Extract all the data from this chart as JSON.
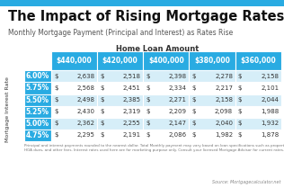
{
  "title": "The Impact of Rising Mortgage Rates",
  "subtitle": "Monthly Mortgage Payment (Principal and Interest) as Rates Rise",
  "table_header": "Home Loan Amount",
  "col_labels": [
    "$440,000",
    "$420,000",
    "$400,000",
    "$380,000",
    "$360,000"
  ],
  "row_labels": [
    "6.00%",
    "5.75%",
    "5.50%",
    "5.25%",
    "5.00%",
    "4.75%"
  ],
  "table_data": [
    [
      "$",
      "2,638",
      "$",
      "2,518",
      "$",
      "2,398",
      "$",
      "2,278",
      "$",
      "2,158"
    ],
    [
      "$",
      "2,568",
      "$",
      "2,451",
      "$",
      "2,334",
      "$",
      "2,217",
      "$",
      "2,101"
    ],
    [
      "$",
      "2,498",
      "$",
      "2,385",
      "$",
      "2,271",
      "$",
      "2,158",
      "$",
      "2,044"
    ],
    [
      "$",
      "2,430",
      "$",
      "2,319",
      "$",
      "2,209",
      "$",
      "2,098",
      "$",
      "1,988"
    ],
    [
      "$",
      "2,362",
      "$",
      "2,255",
      "$",
      "2,147",
      "$",
      "2,040",
      "$",
      "1,932"
    ],
    [
      "$",
      "2,295",
      "$",
      "2,191",
      "$",
      "2,086",
      "$",
      "1,982",
      "$",
      "1,878"
    ]
  ],
  "header_bg": "#29ABE2",
  "row_label_bg": "#29ABE2",
  "row_odd_bg": "#D6EEF8",
  "row_even_bg": "#FFFFFF",
  "header_text_color": "#FFFFFF",
  "row_label_text_color": "#FFFFFF",
  "data_text_color": "#333333",
  "title_color": "#111111",
  "subtitle_color": "#555555",
  "footnote_color": "#777777",
  "source_color": "#888888",
  "top_bar_color": "#29ABE2",
  "footnote": "Principal and interest payments rounded to the nearest dollar. Total Monthly payment may vary based on loan specifications such as property taxes, insurance,\nHOA dues, and other fees. Interest rates used here are for marketing purpose only. Consult your licensed Mortgage Advisor for current rates.",
  "source": "Source: Mortgagecalculator.net",
  "ylabel": "Mortgage Interest Rate",
  "bg_color": "#FFFFFF"
}
